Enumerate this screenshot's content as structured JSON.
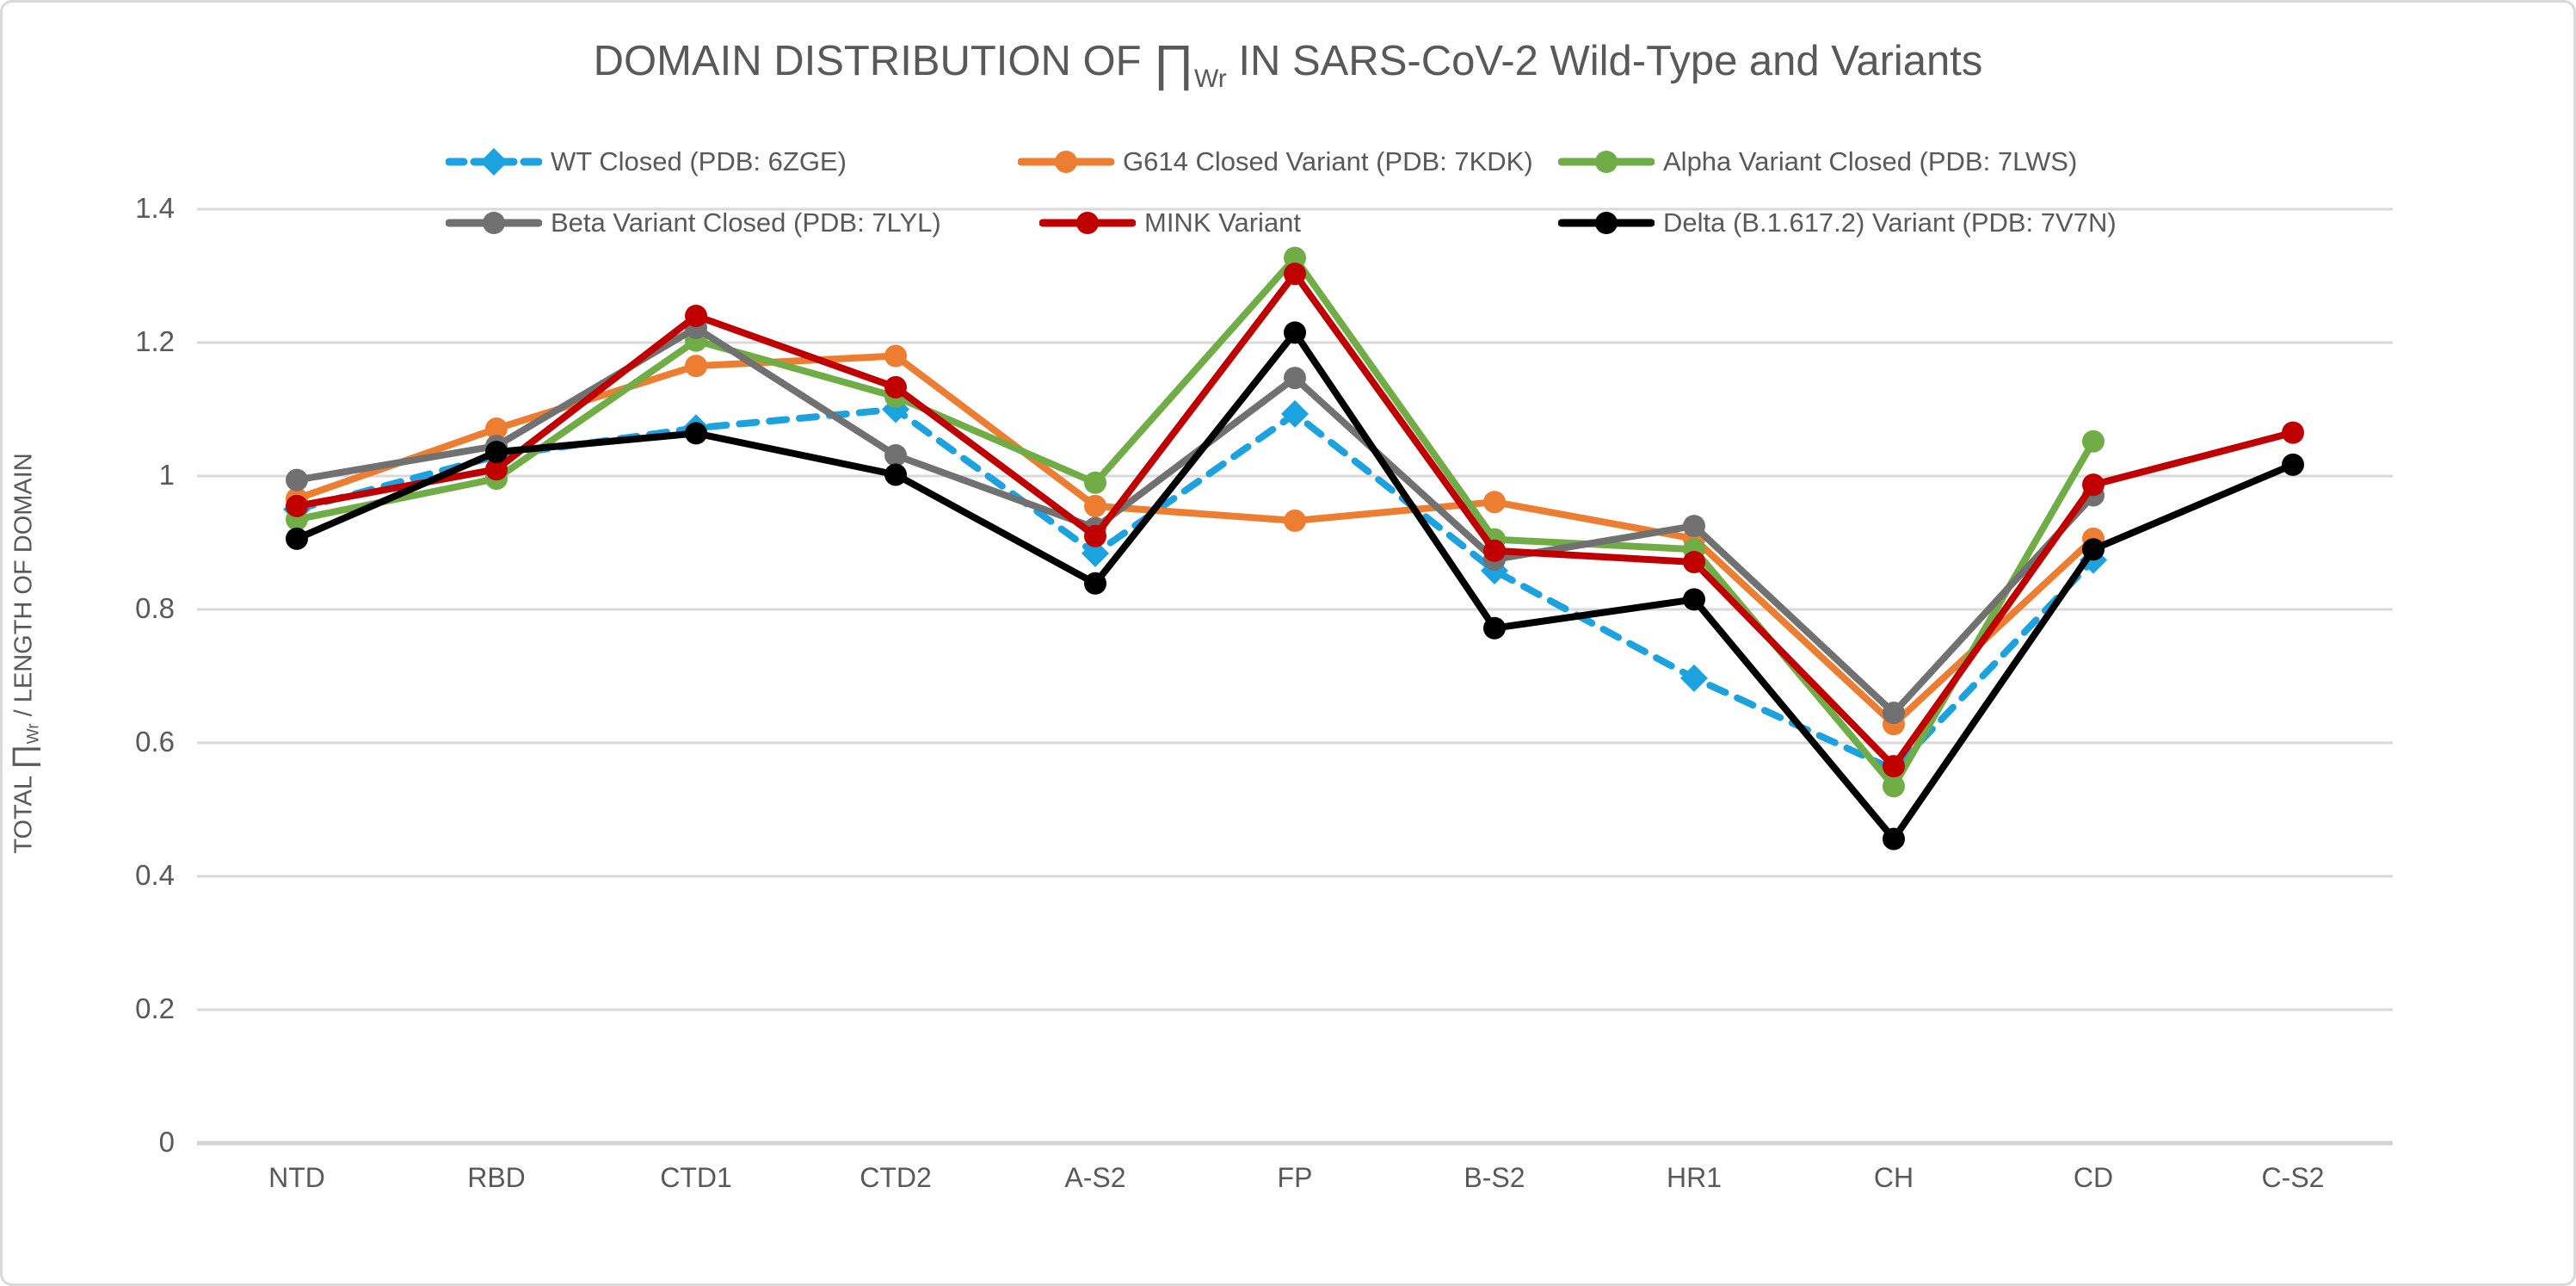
{
  "title": {
    "prefix": "DOMAIN DISTRIBUTION OF ",
    "pi": "∏",
    "sub": "Wr",
    "suffix": "  IN SARS-CoV-2 Wild-Type and Variants"
  },
  "y_axis": {
    "label_prefix": "TOTAL ",
    "label_pi": "∏",
    "label_sub": "Wr",
    "label_suffix": " / LENGTH OF DOMAIN",
    "tick_labels": [
      "0",
      "0.2",
      "0.4",
      "0.6",
      "0.8",
      "1",
      "1.2",
      "1.4"
    ]
  },
  "colors": {
    "text": "#595959",
    "gridline": "#D9D9D9",
    "axis_line": "#D3D3D3",
    "background": "#FFFFFF",
    "border": "#D9D9D9"
  },
  "chart_data": {
    "type": "line",
    "title": "DOMAIN DISTRIBUTION OF ∏Wr IN SARS-CoV-2 Wild-Type and Variants",
    "xlabel": "",
    "ylabel": "TOTAL ∏Wr / LENGTH OF DOMAIN",
    "categories": [
      "NTD",
      "RBD",
      "CTD1",
      "CTD2",
      "A-S2",
      "FP",
      "B-S2",
      "HR1",
      "CH",
      "CD",
      "C-S2"
    ],
    "ylim": [
      0,
      1.4
    ],
    "ytick_step": 0.2,
    "grid": true,
    "legend_position": "top",
    "series": [
      {
        "name": "WT Closed (PDB: 6ZGE)",
        "color": "#1CA2DF",
        "dash": true,
        "marker": "diamond",
        "values": [
          0.95,
          1.03,
          1.072,
          1.1,
          0.884,
          1.093,
          0.858,
          0.697,
          0.56,
          0.874,
          null
        ]
      },
      {
        "name": "G614 Closed Variant (PDB: 7KDK)",
        "color": "#ED7D31",
        "dash": false,
        "marker": "circle",
        "values": [
          0.966,
          1.071,
          1.165,
          1.18,
          0.955,
          0.933,
          0.961,
          0.906,
          0.628,
          0.906,
          null
        ]
      },
      {
        "name": "Alpha Variant Closed (PDB: 7LWS)",
        "color": "#70AD47",
        "dash": false,
        "marker": "circle",
        "values": [
          0.935,
          0.996,
          1.203,
          1.119,
          0.99,
          1.327,
          0.905,
          0.89,
          0.535,
          1.052,
          null
        ]
      },
      {
        "name": "Beta Variant Closed (PDB: 7LYL)",
        "color": "#717171",
        "dash": false,
        "marker": "circle",
        "values": [
          0.994,
          1.045,
          1.222,
          1.031,
          0.922,
          1.147,
          0.875,
          0.925,
          0.645,
          0.971,
          null
        ]
      },
      {
        "name": "MINK Variant",
        "color": "#C00000",
        "dash": false,
        "marker": "circle",
        "values": [
          0.955,
          1.01,
          1.24,
          1.133,
          0.91,
          1.303,
          0.888,
          0.871,
          0.565,
          0.987,
          1.065
        ]
      },
      {
        "name": "Delta (B.1.617.2) Variant (PDB: 7V7N)",
        "color": "#000000",
        "dash": false,
        "marker": "circle",
        "values": [
          0.906,
          1.036,
          1.064,
          1.002,
          0.839,
          1.215,
          0.772,
          0.815,
          0.456,
          0.89,
          1.017
        ]
      }
    ]
  }
}
